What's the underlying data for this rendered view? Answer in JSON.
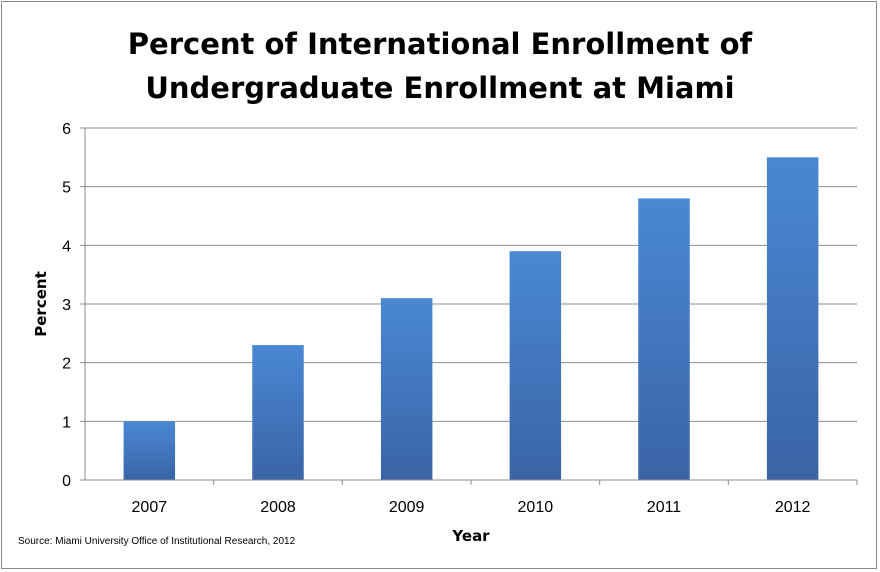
{
  "chart_data": {
    "type": "bar",
    "title_lines": [
      "Percent of International Enrollment of",
      "Undergraduate Enrollment at Miami"
    ],
    "xlabel": "Year",
    "ylabel": "Percent",
    "categories": [
      "2007",
      "2008",
      "2009",
      "2010",
      "2011",
      "2012"
    ],
    "values": [
      1.0,
      2.3,
      3.1,
      3.9,
      4.8,
      5.5
    ],
    "ylim": [
      0,
      6
    ],
    "yticks": [
      "0",
      "1",
      "2",
      "3",
      "4",
      "5",
      "6"
    ],
    "grid": true,
    "bar_color": "#4a7fc4",
    "source": "Source: Miami University Office of Institutional Research, 2012"
  }
}
